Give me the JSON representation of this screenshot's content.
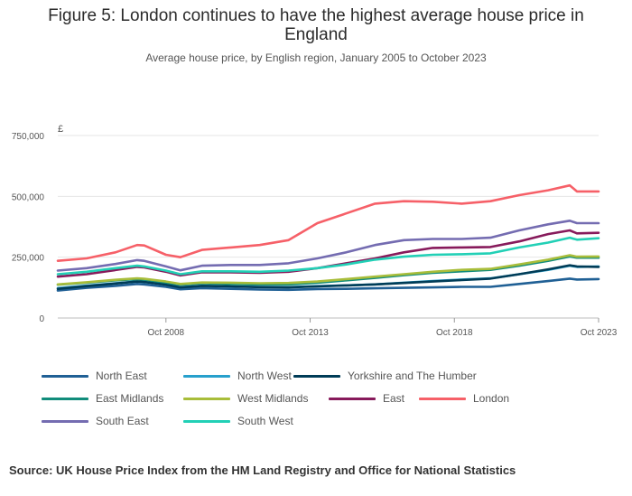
{
  "header": {
    "title": "Figure 5: London continues to have the highest average house price in England",
    "subtitle": "Average house price, by English region, January 2005 to October 2023"
  },
  "footer": {
    "source": "Source: UK House Price Index from the HM Land Registry and Office for National Statistics"
  },
  "chart_data": {
    "type": "line",
    "title": "Figure 5: London continues to have the highest average house price in England",
    "subtitle": "Average house price, by English region, January 2005 to October 2023",
    "ylabel": "£",
    "ylim": [
      0,
      750000
    ],
    "yticks": [
      0,
      250000,
      500000,
      750000
    ],
    "ytick_labels": [
      "0",
      "250,000",
      "500,000",
      "750,000"
    ],
    "xlim": [
      "Jan 2005",
      "Oct 2023"
    ],
    "xticks": [
      "Oct 2008",
      "Oct 2013",
      "Oct 2018",
      "Oct 2023"
    ],
    "grid": true,
    "legend_position": "bottom",
    "x": [
      "Jan 2005",
      "Jan 2006",
      "Jan 2007",
      "Oct 2007",
      "Jan 2008",
      "Oct 2008",
      "Apr 2009",
      "Jan 2010",
      "Jan 2011",
      "Jan 2012",
      "Jan 2013",
      "Jan 2014",
      "Jan 2015",
      "Jan 2016",
      "Jan 2017",
      "Jan 2018",
      "Jan 2019",
      "Jan 2020",
      "Jan 2021",
      "Jan 2022",
      "Oct 2022",
      "Jan 2023",
      "Oct 2023"
    ],
    "series": [
      {
        "name": "North East",
        "color": "#206095",
        "values": [
          113000,
          124000,
          132000,
          140000,
          138000,
          128000,
          118000,
          123000,
          120000,
          117000,
          116000,
          119000,
          120000,
          122000,
          124000,
          126000,
          128000,
          128000,
          140000,
          152000,
          162000,
          158000,
          160000
        ]
      },
      {
        "name": "North West",
        "color": "#27a0cc",
        "values": [
          123000,
          133000,
          143000,
          150000,
          148000,
          138000,
          127000,
          133000,
          130000,
          128000,
          127000,
          131000,
          134000,
          138000,
          145000,
          152000,
          158000,
          163000,
          180000,
          198000,
          215000,
          210000,
          212000
        ]
      },
      {
        "name": "Yorkshire and The Humber",
        "color": "#003c57",
        "values": [
          120000,
          131000,
          142000,
          150000,
          148000,
          137000,
          126000,
          132000,
          130000,
          127000,
          126000,
          130000,
          134000,
          138000,
          144000,
          150000,
          156000,
          162000,
          180000,
          200000,
          217000,
          212000,
          210000
        ]
      },
      {
        "name": "East Midlands",
        "color": "#118c7b",
        "values": [
          137000,
          145000,
          155000,
          160000,
          158000,
          146000,
          137000,
          143000,
          140000,
          138000,
          138000,
          145000,
          155000,
          165000,
          176000,
          186000,
          192000,
          198000,
          215000,
          235000,
          253000,
          248000,
          248000
        ]
      },
      {
        "name": "West Midlands",
        "color": "#a8bd3a",
        "values": [
          138000,
          147000,
          157000,
          163000,
          161000,
          150000,
          140000,
          146000,
          145000,
          143000,
          144000,
          150000,
          160000,
          170000,
          180000,
          190000,
          198000,
          202000,
          220000,
          240000,
          258000,
          252000,
          253000
        ]
      },
      {
        "name": "East",
        "color": "#871a5b",
        "values": [
          170000,
          180000,
          197000,
          210000,
          208000,
          190000,
          175000,
          188000,
          188000,
          186000,
          190000,
          205000,
          225000,
          245000,
          270000,
          288000,
          290000,
          292000,
          315000,
          345000,
          360000,
          348000,
          350000
        ]
      },
      {
        "name": "London",
        "color": "#f66068",
        "values": [
          235000,
          245000,
          270000,
          300000,
          298000,
          260000,
          250000,
          280000,
          290000,
          300000,
          320000,
          390000,
          430000,
          470000,
          480000,
          478000,
          470000,
          480000,
          505000,
          525000,
          545000,
          520000,
          520000
        ]
      },
      {
        "name": "South East",
        "color": "#746cb1",
        "values": [
          195000,
          205000,
          222000,
          238000,
          235000,
          212000,
          196000,
          215000,
          218000,
          218000,
          225000,
          245000,
          270000,
          300000,
          320000,
          325000,
          325000,
          330000,
          360000,
          385000,
          400000,
          390000,
          390000
        ]
      },
      {
        "name": "South West",
        "color": "#22d0b6",
        "values": [
          180000,
          190000,
          205000,
          215000,
          212000,
          195000,
          180000,
          192000,
          192000,
          190000,
          195000,
          205000,
          220000,
          240000,
          252000,
          260000,
          262000,
          266000,
          290000,
          310000,
          330000,
          322000,
          328000
        ]
      }
    ]
  }
}
